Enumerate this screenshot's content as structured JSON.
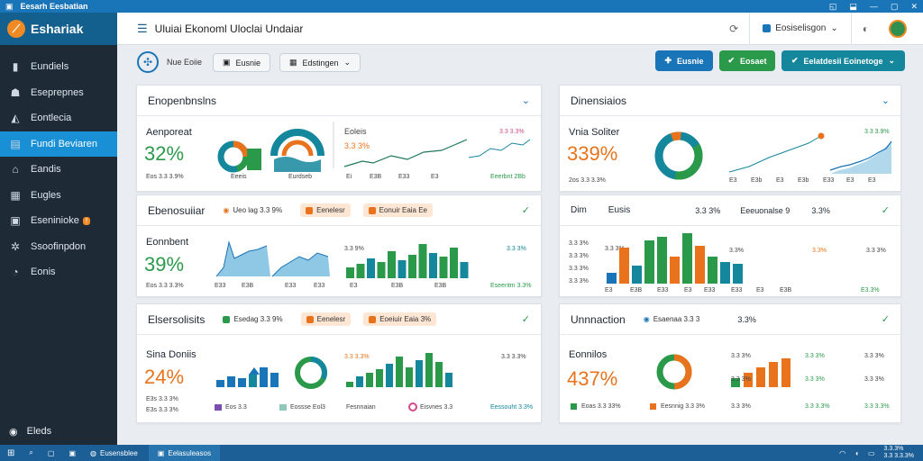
{
  "titlebar": {
    "title": "Eesarh Eesbatian",
    "controls": [
      "◱",
      "⬓",
      "—",
      "▢",
      "✕"
    ]
  },
  "sidebar": {
    "brand": "Eshariak",
    "items": [
      {
        "label": "Eundiels",
        "icon": "bar-chart-icon"
      },
      {
        "label": "Eseprepnes",
        "icon": "user-icon"
      },
      {
        "label": "Eontlecia",
        "icon": "tag-icon"
      },
      {
        "label": "Fundi Beviaren",
        "icon": "table-icon",
        "active": true
      },
      {
        "label": "Eandis",
        "icon": "home-icon"
      },
      {
        "label": "Eugles",
        "icon": "grid-icon"
      },
      {
        "label": "Eseninioke",
        "icon": "briefcase-icon",
        "badge": "!"
      },
      {
        "label": "Ssoofinpdon",
        "icon": "gear-icon"
      },
      {
        "label": "Eonis",
        "icon": "chat-icon"
      }
    ],
    "bottom": "Eleds"
  },
  "header": {
    "title": "Uluiai Ekonoml Uloclai Undaiar",
    "account": "Eosiselisgon"
  },
  "toolbar": {
    "label": "Nue Eoiie",
    "pill1": "Eusnie",
    "pill2": "Edstingen",
    "btn1": "Eusnie",
    "btn2": "Eosaet",
    "btn3": "Eelatdesii Eoinetoge"
  },
  "colors": {
    "blue": "#1a74b8",
    "teal": "#14879c",
    "green": "#2a9a4a",
    "orange": "#e8731c"
  },
  "card1": {
    "title": "Enopenbnslns",
    "metric_label": "Aenporeat",
    "metric_value": "32%",
    "caption": "Eos 3.3 3.9%",
    "donut_caption": "Eeeis",
    "pill_caption": "Eurdseb",
    "chart_title": "Eoleis",
    "chart_sub": "3.3 3%",
    "axis": [
      "Ei",
      "E3B",
      "E33",
      "E3"
    ],
    "spark_tag": "3.3 3.3%",
    "spark_foot": "Eeerbnt 2Bb"
  },
  "card2": {
    "title": "Dinensiaios",
    "metric_label": "Vnia Soliter",
    "metric_value": "339%",
    "caption": "2os 3.3 3.3%",
    "line_tag": "3.3 3.9%",
    "axis": [
      "E3",
      "E3b",
      "E3",
      "E3b",
      "E33",
      "E3",
      "E3"
    ]
  },
  "card3": {
    "title": "Ebenosuiiar",
    "chip1": "Ueo lag 3.3 9%",
    "chip2": "Eenelesr",
    "chip3": "Eonuir Eaia Ee",
    "metric_label": "Eonnbent",
    "metric_value": "39%",
    "caption": "Eos 3.3 3.3%",
    "spark_tag": "3.3 9%",
    "bar_tag": "3.3 3%",
    "bar_foot": "Eseentm 3.3%",
    "axis": [
      "E33",
      "E3B",
      "E33",
      "E33",
      "E3",
      "E3B",
      "E3B"
    ]
  },
  "card4": {
    "hdr_left": "Dim",
    "hdr_mid": "Eusis",
    "hdr_v1": "3.3 3%",
    "hdr_v2": "Eeeuonalse 9",
    "hdr_v3": "3.3%",
    "y_labels": [
      "3.3 3%",
      "3.3 3%",
      "3.3 3%",
      "3.3 3%"
    ],
    "mini_tag": "3.3 3%",
    "col_vals": [
      "3.3%",
      "3.3%",
      "3.3 3%"
    ],
    "axis": [
      "E3",
      "E3B",
      "E33",
      "E3",
      "E33",
      "E33",
      "E3",
      "E3B",
      "E3.3%"
    ]
  },
  "card5": {
    "title": "Elsersolisits",
    "chip1": "Esedag 3.3 9%",
    "chip2": "Eenelesr",
    "chip3": "Eoeiuir Eaia 3%",
    "metric_label": "Sina Doniis",
    "metric_value": "24%",
    "caption1": "E3s 3.3 3%",
    "caption2": "E3s 3.3 3%",
    "legend1": "Eos 3.3",
    "legend2": "Eossse Eol3",
    "legend3": "Fesnnaian",
    "legend4": "Eisvnes 3.3",
    "bar_tag": "3.3 3.3%",
    "bar_tag2": "3.3 3.3%",
    "bar_foot": "Eessouht 3.3%"
  },
  "card6": {
    "title": "Unnnaction",
    "chip1": "Esaenaa 3.3 3",
    "hdr_v": "3.3%",
    "metric_label": "Eonnilos",
    "metric_value": "437%",
    "legend1": "Eoas 3.3 33%",
    "legend2": "Eesnnig 3.3 3%",
    "row_labels": [
      "3.3 3%",
      "3.3 3%",
      "3.3 3%"
    ],
    "col_a": [
      "3.3 3%",
      "3.3 3%",
      "3.3 3.3%"
    ],
    "col_b": [
      "3.3 3%",
      "3.3 3%",
      "3.3 3.3%"
    ]
  },
  "taskbar": {
    "app1": "Eusensblee",
    "app2": "Eelasuleasos",
    "time": "3.3.3%",
    "date": "3.3 3.3.3%"
  }
}
